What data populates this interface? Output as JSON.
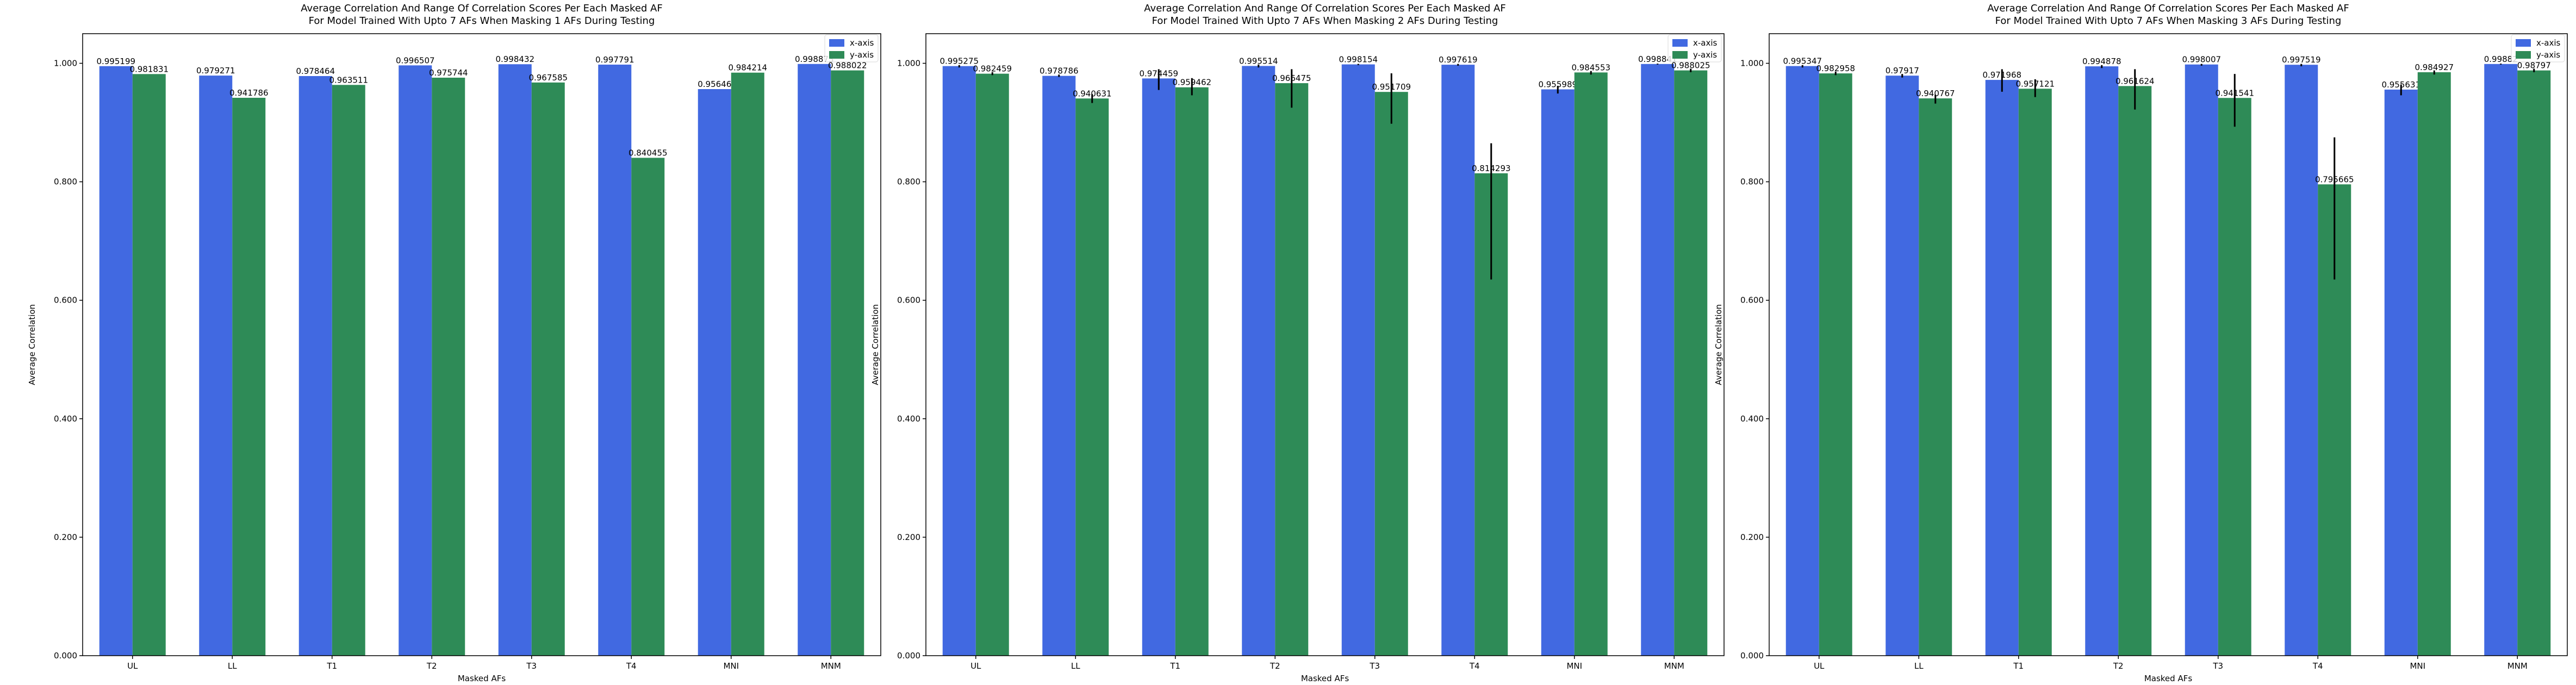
{
  "figure": {
    "colors": {
      "x_axis": "#4169e1",
      "y_axis": "#2e8b57",
      "error_bar": "#000000",
      "axes": "#000000"
    }
  },
  "chart_data": [
    {
      "type": "bar",
      "title": "Average Correlation And Range Of Correlation Scores Per Each Masked AF",
      "subtitle": "For Model Trained With Upto 7 AFs When Masking 1 AFs During Testing",
      "xlabel": "Masked AFs",
      "ylabel": "Average Correlation",
      "categories": [
        "UL",
        "LL",
        "T1",
        "T2",
        "T3",
        "T4",
        "MNI",
        "MNM"
      ],
      "ylim": [
        0,
        1.05
      ],
      "yticks": [
        "0.000",
        "0.200",
        "0.400",
        "0.600",
        "0.800",
        "1.000"
      ],
      "grid": false,
      "legend_position": "top-right",
      "series": [
        {
          "name": "x-axis",
          "color": "#4169e1",
          "values": [
            0.995199,
            0.979271,
            0.978464,
            0.996507,
            0.998432,
            0.997791,
            0.95646,
            0.998873
          ],
          "labels": [
            "0.995199",
            "0.979271",
            "0.978464",
            "0.996507",
            "0.998432",
            "0.997791",
            "0.95646",
            "0.998873"
          ]
        },
        {
          "name": "y-axis",
          "color": "#2e8b57",
          "values": [
            0.981831,
            0.941786,
            0.963511,
            0.975744,
            0.967585,
            0.840455,
            0.984214,
            0.988022
          ],
          "labels": [
            "0.981831",
            "0.941786",
            "0.963511",
            "0.975744",
            "0.967585",
            "0.840455",
            "0.984214",
            "0.988022"
          ]
        }
      ]
    },
    {
      "type": "bar",
      "title": "Average Correlation And Range Of Correlation Scores Per Each Masked AF",
      "subtitle": "For Model Trained With Upto 7 AFs When Masking 2 AFs During Testing",
      "xlabel": "Masked AFs",
      "ylabel": "Average Correlation",
      "categories": [
        "UL",
        "LL",
        "T1",
        "T2",
        "T3",
        "T4",
        "MNI",
        "MNM"
      ],
      "ylim": [
        0,
        1.05
      ],
      "yticks": [
        "0.000",
        "0.200",
        "0.400",
        "0.600",
        "0.800",
        "1.000"
      ],
      "grid": false,
      "legend_position": "top-right",
      "series": [
        {
          "name": "x-axis",
          "color": "#4169e1",
          "values": [
            0.995275,
            0.978786,
            0.974459,
            0.995514,
            0.998154,
            0.997619,
            0.955989,
            0.998841
          ],
          "labels": [
            "0.995275",
            "0.978786",
            "0.974459",
            "0.995514",
            "0.998154",
            "0.997619",
            "0.955989",
            "0.998841"
          ],
          "error_ranges": [
            [
              0.993,
              0.997
            ],
            [
              0.977,
              0.981
            ],
            [
              0.955,
              0.99
            ],
            [
              0.993,
              0.998
            ],
            [
              0.997,
              0.999
            ],
            [
              0.996,
              0.999
            ],
            [
              0.949,
              0.962
            ],
            [
              0.998,
              0.9995
            ]
          ]
        },
        {
          "name": "y-axis",
          "color": "#2e8b57",
          "values": [
            0.982459,
            0.940631,
            0.959462,
            0.966475,
            0.951709,
            0.814293,
            0.984553,
            0.988025
          ],
          "labels": [
            "0.982459",
            "0.940631",
            "0.959462",
            "0.966475",
            "0.951709",
            "0.814293",
            "0.984553",
            "0.988025"
          ],
          "error_ranges": [
            [
              0.98,
              0.985
            ],
            [
              0.933,
              0.948
            ],
            [
              0.946,
              0.975
            ],
            [
              0.925,
              0.99
            ],
            [
              0.898,
              0.983
            ],
            [
              0.635,
              0.865
            ],
            [
              0.981,
              0.987
            ],
            [
              0.985,
              0.991
            ]
          ]
        }
      ]
    },
    {
      "type": "bar",
      "title": "Average Correlation And Range Of Correlation Scores Per Each Masked AF",
      "subtitle": "For Model Trained With Upto 7 AFs When Masking 3 AFs During Testing",
      "xlabel": "Masked AFs",
      "ylabel": "Average Correlation",
      "categories": [
        "UL",
        "LL",
        "T1",
        "T2",
        "T3",
        "T4",
        "MNI",
        "MNM"
      ],
      "ylim": [
        0,
        1.05
      ],
      "yticks": [
        "0.000",
        "0.200",
        "0.400",
        "0.600",
        "0.800",
        "1.000"
      ],
      "grid": false,
      "legend_position": "top-right",
      "series": [
        {
          "name": "x-axis",
          "color": "#4169e1",
          "values": [
            0.995347,
            0.97917,
            0.971968,
            0.994878,
            0.998007,
            0.997519,
            0.955631,
            0.99882
          ],
          "labels": [
            "0.995347",
            "0.97917",
            "0.971968",
            "0.994878",
            "0.998007",
            "0.997519",
            "0.955631",
            "0.99882"
          ],
          "error_ranges": [
            [
              0.993,
              0.997
            ],
            [
              0.976,
              0.982
            ],
            [
              0.952,
              0.99
            ],
            [
              0.992,
              0.997
            ],
            [
              0.996,
              0.999
            ],
            [
              0.995,
              0.999
            ],
            [
              0.946,
              0.964
            ],
            [
              0.998,
              0.9995
            ]
          ]
        },
        {
          "name": "y-axis",
          "color": "#2e8b57",
          "values": [
            0.982958,
            0.940767,
            0.957121,
            0.961624,
            0.941541,
            0.795665,
            0.984927,
            0.98797
          ],
          "labels": [
            "0.982958",
            "0.940767",
            "0.957121",
            "0.961624",
            "0.941541",
            "0.795665",
            "0.984927",
            "0.98797"
          ],
          "error_ranges": [
            [
              0.98,
              0.986
            ],
            [
              0.932,
              0.947
            ],
            [
              0.943,
              0.973
            ],
            [
              0.922,
              0.99
            ],
            [
              0.893,
              0.982
            ],
            [
              0.635,
              0.875
            ],
            [
              0.981,
              0.988
            ],
            [
              0.985,
              0.991
            ]
          ]
        }
      ]
    }
  ]
}
